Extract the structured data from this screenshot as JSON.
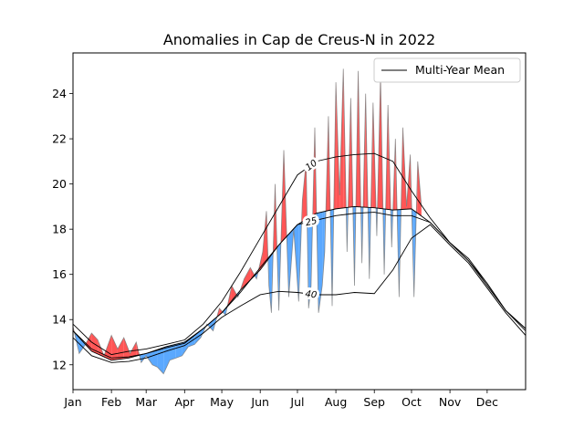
{
  "chart_data": {
    "type": "area",
    "title": "Anomalies in Cap de Creus-N in 2022",
    "xlabel": "",
    "ylabel": "",
    "months": [
      "Jan",
      "Feb",
      "Mar",
      "Apr",
      "May",
      "Jun",
      "Jul",
      "Aug",
      "Sep",
      "Oct",
      "Nov",
      "Dec"
    ],
    "x_range_days": [
      0,
      365
    ],
    "ylim": [
      10.9,
      25.8
    ],
    "yticks": [
      12,
      14,
      16,
      18,
      20,
      22,
      24
    ],
    "grid": false,
    "legend": {
      "entries": [
        "Multi-Year Mean"
      ],
      "placement": "top-right"
    },
    "contour_labels": [
      "10",
      "25",
      "40"
    ],
    "colors": {
      "above": "#ff5555",
      "below": "#5aa8ff",
      "line": "#000000"
    },
    "series": [
      {
        "name": "Multi-Year Mean",
        "day": [
          0,
          15,
          31,
          45,
          59,
          75,
          90,
          105,
          120,
          135,
          151,
          166,
          181,
          196,
          212,
          227,
          243,
          258,
          273,
          288,
          304,
          319,
          334,
          349,
          365
        ],
        "values": [
          13.5,
          12.6,
          12.2,
          12.3,
          12.5,
          12.8,
          13.0,
          13.6,
          14.3,
          15.3,
          16.2,
          17.3,
          18.2,
          18.7,
          18.9,
          19.0,
          18.95,
          18.85,
          18.9,
          18.3,
          17.4,
          16.7,
          15.6,
          14.4,
          13.6
        ]
      },
      {
        "name": "10",
        "day": [
          0,
          15,
          31,
          45,
          59,
          75,
          90,
          105,
          120,
          135,
          151,
          166,
          181,
          196,
          212,
          227,
          243,
          258,
          273,
          288,
          304,
          319,
          334,
          349,
          365
        ],
        "values": [
          13.8,
          13.0,
          12.45,
          12.6,
          12.7,
          12.9,
          13.1,
          13.8,
          14.8,
          16.1,
          17.6,
          19.0,
          20.4,
          21.0,
          21.2,
          21.3,
          21.35,
          21.0,
          19.7,
          18.5,
          17.4,
          16.6,
          15.6,
          14.4,
          13.5
        ]
      },
      {
        "name": "25",
        "day": [
          0,
          15,
          31,
          45,
          59,
          75,
          90,
          105,
          120,
          135,
          151,
          166,
          181,
          196,
          212,
          227,
          243,
          258,
          273,
          288,
          304,
          319,
          334,
          349,
          365
        ],
        "values": [
          13.5,
          12.7,
          12.3,
          12.35,
          12.5,
          12.75,
          12.95,
          13.6,
          14.3,
          15.2,
          16.3,
          17.3,
          18.2,
          18.4,
          18.6,
          18.7,
          18.75,
          18.6,
          18.6,
          18.3,
          17.4,
          16.6,
          15.5,
          14.4,
          13.6
        ]
      },
      {
        "name": "40",
        "day": [
          0,
          15,
          31,
          45,
          59,
          75,
          90,
          105,
          120,
          135,
          151,
          166,
          181,
          196,
          212,
          227,
          243,
          258,
          273,
          288,
          304,
          319,
          334,
          349,
          365
        ],
        "values": [
          13.2,
          12.4,
          12.1,
          12.15,
          12.3,
          12.6,
          12.85,
          13.4,
          14.1,
          14.6,
          15.1,
          15.25,
          15.2,
          15.1,
          15.1,
          15.2,
          15.15,
          16.2,
          17.6,
          18.2,
          17.3,
          16.5,
          15.4,
          14.3,
          13.3
        ]
      },
      {
        "name": "2022",
        "day": [
          0,
          5,
          10,
          15,
          20,
          25,
          31,
          36,
          41,
          46,
          51,
          55,
          59,
          64,
          68,
          73,
          78,
          83,
          88,
          93,
          98,
          103,
          108,
          113,
          118,
          123,
          128,
          133,
          138,
          143,
          148,
          153,
          156,
          158,
          160,
          163,
          166,
          170,
          174,
          178,
          182,
          185,
          188,
          190,
          192,
          195,
          198,
          201,
          203,
          206,
          209,
          212,
          215,
          218,
          221,
          224,
          227,
          230,
          233,
          236,
          239,
          242,
          245,
          248,
          251,
          254,
          257,
          260,
          263,
          266,
          269,
          272,
          275,
          278,
          281
        ],
        "values": [
          13.7,
          12.5,
          12.9,
          13.4,
          13.1,
          12.4,
          13.3,
          12.7,
          13.2,
          12.5,
          13.0,
          12.1,
          12.4,
          12.0,
          11.9,
          11.6,
          12.2,
          12.3,
          12.4,
          12.8,
          12.9,
          13.2,
          13.8,
          13.5,
          14.5,
          14.2,
          15.5,
          15.0,
          15.8,
          16.3,
          15.8,
          17.0,
          18.8,
          15.5,
          14.3,
          20.0,
          14.4,
          21.5,
          15.0,
          18.0,
          14.8,
          19.3,
          21.0,
          14.5,
          15.5,
          22.5,
          14.3,
          15.5,
          17.0,
          23.0,
          14.6,
          24.5,
          19.5,
          25.1,
          17.0,
          23.8,
          15.5,
          25.0,
          16.5,
          24.0,
          15.8,
          23.6,
          17.7,
          24.8,
          16.0,
          23.5,
          17.2,
          22.0,
          15.0,
          22.5,
          19.0,
          21.3,
          15.0,
          21.0,
          19.0
        ]
      }
    ]
  }
}
